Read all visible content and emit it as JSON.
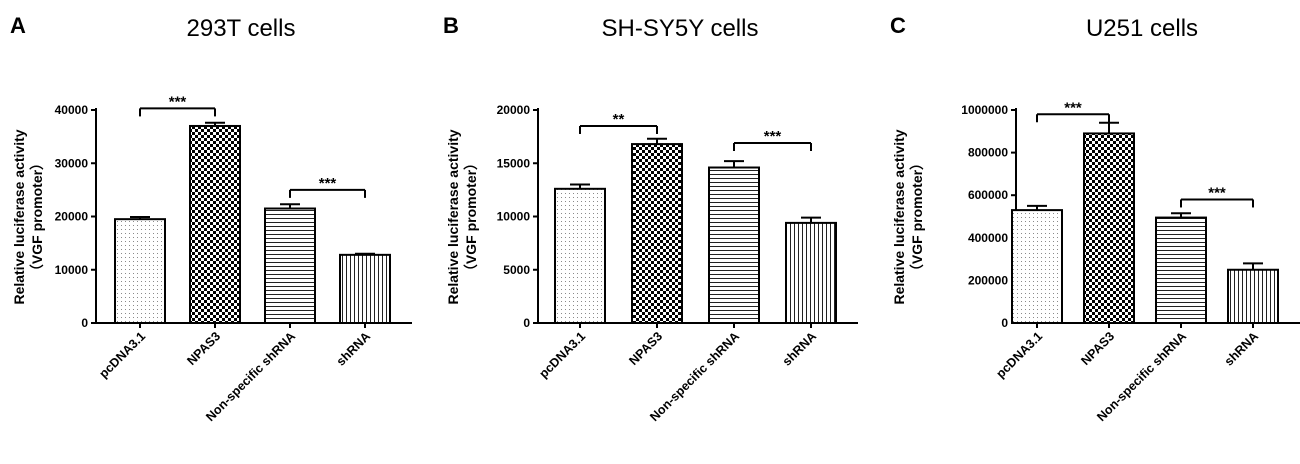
{
  "chart_data": [
    {
      "type": "bar",
      "panel": "A",
      "title": "293T cells",
      "ylabel": [
        "Relative luciferase activity",
        "（VGF promoter）"
      ],
      "ylim": [
        0,
        40000
      ],
      "yticks": [
        0,
        10000,
        20000,
        30000,
        40000
      ],
      "categories": [
        "pcDNA3.1",
        "NPAS3",
        "Non-specific shRNA",
        "shRNA"
      ],
      "values": [
        19500,
        37000,
        21500,
        12800
      ],
      "errors": [
        400,
        600,
        800,
        200
      ],
      "patterns": [
        "dots",
        "checker",
        "hlines",
        "vlines"
      ],
      "significance": [
        {
          "from": 0,
          "to": 1,
          "label": "***",
          "y": 40300
        },
        {
          "from": 2,
          "to": 3,
          "label": "***",
          "y": 25000
        }
      ]
    },
    {
      "type": "bar",
      "panel": "B",
      "title": "SH-SY5Y cells",
      "ylabel": [
        "Relative luciferase activity",
        "（VGF promoter）"
      ],
      "ylim": [
        0,
        20000
      ],
      "yticks": [
        0,
        5000,
        10000,
        15000,
        20000
      ],
      "categories": [
        "pcDNA3.1",
        "NPAS3",
        "Non-specific shRNA",
        "shRNA"
      ],
      "values": [
        12600,
        16800,
        14600,
        9400
      ],
      "errors": [
        400,
        500,
        600,
        500
      ],
      "patterns": [
        "dots",
        "checker",
        "hlines",
        "vlines"
      ],
      "significance": [
        {
          "from": 0,
          "to": 1,
          "label": "**",
          "y": 18500
        },
        {
          "from": 2,
          "to": 3,
          "label": "***",
          "y": 16900
        }
      ]
    },
    {
      "type": "bar",
      "panel": "C",
      "title": "U251 cells",
      "ylabel": [
        "Relative luciferase activity",
        "（VGF promoter）"
      ],
      "ylim": [
        0,
        1000000
      ],
      "yticks": [
        0,
        200000,
        400000,
        600000,
        800000,
        1000000
      ],
      "categories": [
        "pcDNA3.1",
        "NPAS3",
        "Non-specific shRNA",
        "shRNA"
      ],
      "values": [
        530000,
        890000,
        495000,
        250000
      ],
      "errors": [
        20000,
        50000,
        20000,
        30000
      ],
      "patterns": [
        "dots",
        "checker",
        "hlines",
        "vlines"
      ],
      "significance": [
        {
          "from": 0,
          "to": 1,
          "label": "***",
          "y": 980000
        },
        {
          "from": 2,
          "to": 3,
          "label": "***",
          "y": 580000
        }
      ]
    }
  ]
}
